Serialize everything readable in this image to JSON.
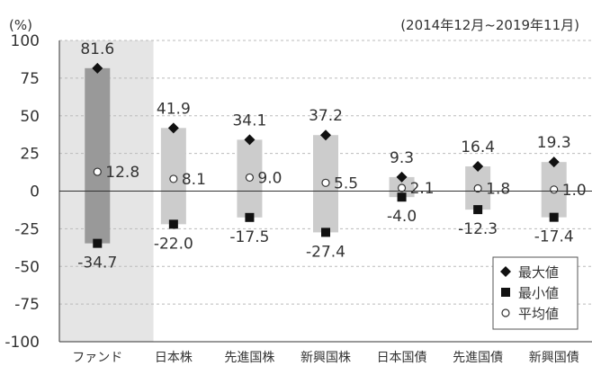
{
  "chart_data": {
    "type": "range",
    "unit_label": "(%)",
    "period": "(2014年12月~2019年11月)",
    "ylim": [
      -100,
      100
    ],
    "yticks": [
      100,
      75,
      50,
      25,
      0,
      -25,
      -50,
      -75,
      -100
    ],
    "grid": "horizontal dashed",
    "categories": [
      "ファンド",
      "日本株",
      "先進国株",
      "新興国株",
      "日本国債",
      "先進国債",
      "新興国債"
    ],
    "max": [
      81.6,
      41.9,
      34.1,
      37.2,
      9.3,
      16.4,
      19.3
    ],
    "min": [
      -34.7,
      -22.0,
      -17.5,
      -27.4,
      -4.0,
      -12.3,
      -17.4
    ],
    "avg": [
      12.8,
      8.1,
      9.0,
      5.5,
      2.1,
      1.8,
      1.0
    ],
    "legend": {
      "position": "bottom-right",
      "items": [
        "最大値",
        "最小値",
        "平均値"
      ]
    },
    "colors": {
      "fund_background": "#e5e5e5",
      "fund_bar": "#999999",
      "bar": "#cccccc",
      "text": "#333333",
      "marker": "#111111"
    }
  }
}
